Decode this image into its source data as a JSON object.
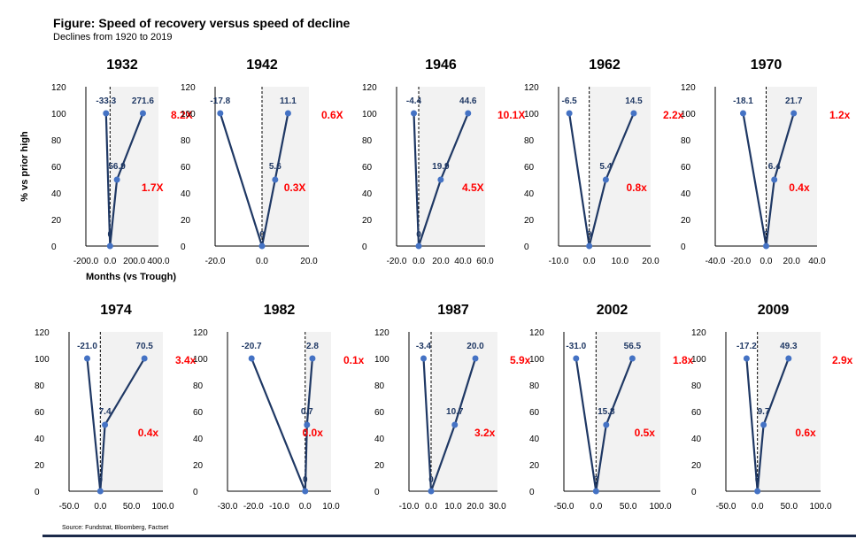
{
  "title": "Figure: Speed of recovery versus speed of decline",
  "subtitle": "Declines from 1920 to 2019",
  "source": "Source: Fundstrat, Bloomberg, Factset",
  "colors": {
    "line": "#1f3864",
    "point": "#4472c4",
    "ratio": "#ff0000",
    "label": "#1f3864",
    "panel": "#f2f2f2"
  },
  "chart_data": [
    {
      "type": "line",
      "title": "1932",
      "ylabel": "% vs prior high",
      "xlabel": "Months (vs Trough)",
      "ylim": [
        0,
        120
      ],
      "yticks": [
        0,
        20,
        40,
        60,
        80,
        100,
        120
      ],
      "xlim": [
        -200,
        400
      ],
      "xticks": [
        "-200.0",
        "0.0",
        "200.0",
        "400.0"
      ],
      "xtick_values": [
        -200,
        0,
        200,
        400
      ],
      "points": [
        {
          "x": -33.3,
          "y": 100,
          "label": "-33.3"
        },
        {
          "x": 0,
          "y": 0,
          "label": "0"
        },
        {
          "x": 56.9,
          "y": 50,
          "label": "56.9"
        },
        {
          "x": 271.6,
          "y": 100,
          "label": "271.6"
        }
      ],
      "ratios": [
        {
          "text": "1.7X",
          "y": 50
        },
        {
          "text": "8.2X",
          "y": 100
        }
      ]
    },
    {
      "type": "line",
      "title": "1942",
      "ylim": [
        0,
        120
      ],
      "yticks": [
        0,
        20,
        40,
        60,
        80,
        100,
        120
      ],
      "xlim": [
        -20,
        20
      ],
      "xticks": [
        "-20.0",
        "0.0",
        "20.0"
      ],
      "xtick_values": [
        -20,
        0,
        20
      ],
      "points": [
        {
          "x": -17.8,
          "y": 100,
          "label": "-17.8"
        },
        {
          "x": 0,
          "y": 0,
          "label": "0"
        },
        {
          "x": 5.6,
          "y": 50,
          "label": "5.6"
        },
        {
          "x": 11.1,
          "y": 100,
          "label": "11.1"
        }
      ],
      "ratios": [
        {
          "text": "0.3X",
          "y": 50
        },
        {
          "text": "0.6X",
          "y": 100
        }
      ]
    },
    {
      "type": "line",
      "title": "1946",
      "ylim": [
        0,
        120
      ],
      "yticks": [
        0,
        20,
        40,
        60,
        80,
        100,
        120
      ],
      "xlim": [
        -20,
        60
      ],
      "xticks": [
        "-20.0",
        "0.0",
        "20.0",
        "40.0",
        "60.0"
      ],
      "xtick_values": [
        -20,
        0,
        20,
        40,
        60
      ],
      "points": [
        {
          "x": -4.4,
          "y": 100,
          "label": "-4.4"
        },
        {
          "x": 0,
          "y": 0,
          "label": "0"
        },
        {
          "x": 19.9,
          "y": 50,
          "label": "19.9"
        },
        {
          "x": 44.6,
          "y": 100,
          "label": "44.6"
        }
      ],
      "ratios": [
        {
          "text": "4.5X",
          "y": 50
        },
        {
          "text": "10.1X",
          "y": 100
        }
      ]
    },
    {
      "type": "line",
      "title": "1962",
      "ylim": [
        0,
        120
      ],
      "yticks": [
        0,
        20,
        40,
        60,
        80,
        100,
        120
      ],
      "xlim": [
        -10,
        20
      ],
      "xticks": [
        "-10.0",
        "0.0",
        "10.0",
        "20.0"
      ],
      "xtick_values": [
        -10,
        0,
        10,
        20
      ],
      "points": [
        {
          "x": -6.5,
          "y": 100,
          "label": "-6.5"
        },
        {
          "x": 0,
          "y": 0,
          "label": "0"
        },
        {
          "x": 5.4,
          "y": 50,
          "label": "5.4"
        },
        {
          "x": 14.5,
          "y": 100,
          "label": "14.5"
        }
      ],
      "ratios": [
        {
          "text": "0.8x",
          "y": 50
        },
        {
          "text": "2.2x",
          "y": 100
        }
      ]
    },
    {
      "type": "line",
      "title": "1970",
      "ylim": [
        0,
        120
      ],
      "yticks": [
        0,
        20,
        40,
        60,
        80,
        100,
        120
      ],
      "xlim": [
        -40,
        40
      ],
      "xticks": [
        "-40.0",
        "-20.0",
        "0.0",
        "20.0",
        "40.0"
      ],
      "xtick_values": [
        -40,
        -20,
        0,
        20,
        40
      ],
      "points": [
        {
          "x": -18.1,
          "y": 100,
          "label": "-18.1"
        },
        {
          "x": 0,
          "y": 0,
          "label": "0"
        },
        {
          "x": 6.4,
          "y": 50,
          "label": "6.4"
        },
        {
          "x": 21.7,
          "y": 100,
          "label": "21.7"
        }
      ],
      "ratios": [
        {
          "text": "0.4x",
          "y": 50
        },
        {
          "text": "1.2x",
          "y": 100
        }
      ]
    },
    {
      "type": "line",
      "title": "1974",
      "ylim": [
        0,
        120
      ],
      "yticks": [
        0,
        20,
        40,
        60,
        80,
        100,
        120
      ],
      "xlim": [
        -50,
        100
      ],
      "xticks": [
        "-50.0",
        "0.0",
        "50.0",
        "100.0"
      ],
      "xtick_values": [
        -50,
        0,
        50,
        100
      ],
      "points": [
        {
          "x": -21.0,
          "y": 100,
          "label": "-21.0"
        },
        {
          "x": 0,
          "y": 0,
          "label": "0"
        },
        {
          "x": 7.4,
          "y": 50,
          "label": "7.4"
        },
        {
          "x": 70.5,
          "y": 100,
          "label": "70.5"
        }
      ],
      "ratios": [
        {
          "text": "0.4x",
          "y": 50
        },
        {
          "text": "3.4x",
          "y": 100
        }
      ]
    },
    {
      "type": "line",
      "title": "1982",
      "ylim": [
        0,
        120
      ],
      "yticks": [
        0,
        20,
        40,
        60,
        80,
        100,
        120
      ],
      "xlim": [
        -30,
        10
      ],
      "xticks": [
        "-30.0",
        "-20.0",
        "-10.0",
        "0.0",
        "10.0"
      ],
      "xtick_values": [
        -30,
        -20,
        -10,
        0,
        10
      ],
      "points": [
        {
          "x": -20.7,
          "y": 100,
          "label": "-20.7"
        },
        {
          "x": 0,
          "y": 0,
          "label": "0"
        },
        {
          "x": 0.7,
          "y": 50,
          "label": "0.7"
        },
        {
          "x": 2.8,
          "y": 100,
          "label": "2.8"
        }
      ],
      "ratios": [
        {
          "text": "0.0x",
          "y": 50
        },
        {
          "text": "0.1x",
          "y": 100
        }
      ]
    },
    {
      "type": "line",
      "title": "1987",
      "ylim": [
        0,
        120
      ],
      "yticks": [
        0,
        20,
        40,
        60,
        80,
        100,
        120
      ],
      "xlim": [
        -10,
        30
      ],
      "xticks": [
        "-10.0",
        "0.0",
        "10.0",
        "20.0",
        "30.0"
      ],
      "xtick_values": [
        -10,
        0,
        10,
        20,
        30
      ],
      "points": [
        {
          "x": -3.4,
          "y": 100,
          "label": "-3.4"
        },
        {
          "x": 0,
          "y": 0,
          "label": "0"
        },
        {
          "x": 10.7,
          "y": 50,
          "label": "10.7"
        },
        {
          "x": 20.0,
          "y": 100,
          "label": "20.0"
        }
      ],
      "ratios": [
        {
          "text": "3.2x",
          "y": 50
        },
        {
          "text": "5.9x",
          "y": 100
        }
      ]
    },
    {
      "type": "line",
      "title": "2002",
      "ylim": [
        0,
        120
      ],
      "yticks": [
        0,
        20,
        40,
        60,
        80,
        100,
        120
      ],
      "xlim": [
        -50,
        100
      ],
      "xticks": [
        "-50.0",
        "0.0",
        "50.0",
        "100.0"
      ],
      "xtick_values": [
        -50,
        0,
        50,
        100
      ],
      "points": [
        {
          "x": -31.0,
          "y": 100,
          "label": "-31.0"
        },
        {
          "x": 0,
          "y": 0,
          "label": "0"
        },
        {
          "x": 15.8,
          "y": 50,
          "label": "15.8"
        },
        {
          "x": 56.5,
          "y": 100,
          "label": "56.5"
        }
      ],
      "ratios": [
        {
          "text": "0.5x",
          "y": 50
        },
        {
          "text": "1.8x",
          "y": 100
        }
      ]
    },
    {
      "type": "line",
      "title": "2009",
      "ylim": [
        0,
        120
      ],
      "yticks": [
        0,
        20,
        40,
        60,
        80,
        100,
        120
      ],
      "xlim": [
        -50,
        100
      ],
      "xticks": [
        "-50.0",
        "0.0",
        "50.0",
        "100.0"
      ],
      "xtick_values": [
        -50,
        0,
        50,
        100
      ],
      "points": [
        {
          "x": -17.2,
          "y": 100,
          "label": "-17.2"
        },
        {
          "x": 0,
          "y": 0,
          "label": "0"
        },
        {
          "x": 9.7,
          "y": 50,
          "label": "9.7"
        },
        {
          "x": 49.3,
          "y": 100,
          "label": "49.3"
        }
      ],
      "ratios": [
        {
          "text": "0.6x",
          "y": 50
        },
        {
          "text": "2.9x",
          "y": 100
        }
      ]
    }
  ]
}
